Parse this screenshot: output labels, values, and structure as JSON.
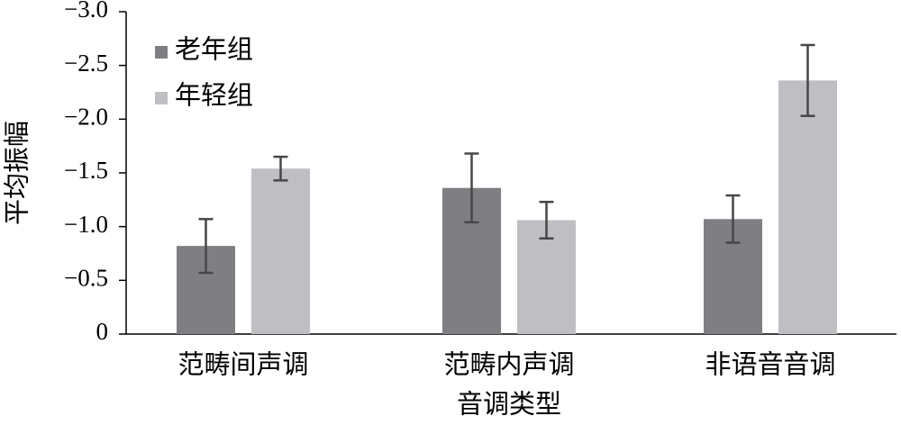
{
  "chart_data": {
    "type": "bar",
    "x_label": "音调类型",
    "y_label": "平均振幅",
    "categories": [
      "范畴间声调",
      "范畴内声调",
      "非语音音调"
    ],
    "series": [
      {
        "name": "老年组",
        "color": "#7f7e83",
        "values": [
          -0.82,
          -1.36,
          -1.07
        ],
        "errors": [
          0.25,
          0.32,
          0.22
        ]
      },
      {
        "name": "年轻组",
        "color": "#bfbec3",
        "values": [
          -1.54,
          -1.06,
          -2.36
        ],
        "errors": [
          0.11,
          0.17,
          0.33
        ]
      }
    ],
    "ylim": [
      0,
      -3.0
    ],
    "yticks": [
      {
        "value": -3.0,
        "label": "−3.0"
      },
      {
        "value": -2.5,
        "label": "−2.5"
      },
      {
        "value": -2.0,
        "label": "−2.0"
      },
      {
        "value": -1.5,
        "label": "−1.5"
      },
      {
        "value": -1.0,
        "label": "−1.0"
      },
      {
        "value": -0.5,
        "label": "−0.5"
      },
      0
    ],
    "legend": "upper left",
    "error_color": "#474747"
  }
}
